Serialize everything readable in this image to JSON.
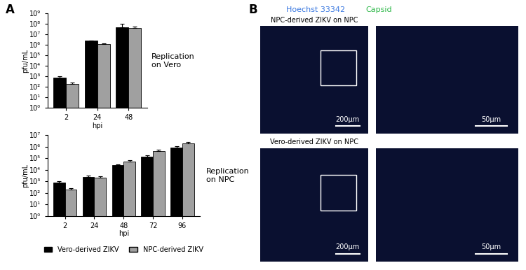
{
  "chart_data": [
    {
      "type": "bar",
      "log": "y",
      "grid": false,
      "x_label": "hpi",
      "y_label": "pfu/mL",
      "annotation": "Replication on Vero",
      "categories": [
        "2",
        "24",
        "48"
      ],
      "ylim": [
        1,
        1000000000
      ],
      "yticks": [
        {
          "value": 1,
          "label": "10⁰"
        },
        {
          "value": 10,
          "label": "10¹"
        },
        {
          "value": 100,
          "label": "10²"
        },
        {
          "value": 1000,
          "label": "10³"
        },
        {
          "value": 10000,
          "label": "10⁴"
        },
        {
          "value": 100000,
          "label": "10⁵"
        },
        {
          "value": 1000000,
          "label": "10⁶"
        },
        {
          "value": 10000000,
          "label": "10⁷"
        },
        {
          "value": 100000000,
          "label": "10⁸"
        },
        {
          "value": 1000000000,
          "label": "10⁹"
        }
      ],
      "series": [
        {
          "name": "Vero-derived ZIKV",
          "color": "#000000",
          "values": [
            800,
            2500000,
            50000000
          ],
          "error": [
            300,
            300000,
            50000000
          ]
        },
        {
          "name": "NPC-derived ZIKV",
          "color": "#a0a0a0",
          "values": [
            200,
            1300000,
            40000000
          ],
          "error": [
            60,
            200000,
            20000000
          ]
        }
      ]
    },
    {
      "type": "bar",
      "log": "y",
      "grid": false,
      "legend": "upper center",
      "x_label": "hpi",
      "y_label": "pfu/mL",
      "annotation": "Replication on NPC",
      "categories": [
        "2",
        "24",
        "48",
        "72",
        "96"
      ],
      "ylim": [
        1,
        10000000
      ],
      "yticks": [
        {
          "value": 1,
          "label": "10⁰"
        },
        {
          "value": 10,
          "label": "10¹"
        },
        {
          "value": 100,
          "label": "10²"
        },
        {
          "value": 1000,
          "label": "10³"
        },
        {
          "value": 10000,
          "label": "10⁴"
        },
        {
          "value": 100000,
          "label": "10⁵"
        },
        {
          "value": 1000000,
          "label": "10⁶"
        },
        {
          "value": 10000000,
          "label": "10⁷"
        }
      ],
      "series": [
        {
          "name": "Vero-derived ZIKV",
          "color": "#000000",
          "values": [
            800,
            2500,
            25000,
            130000,
            800000
          ],
          "error": [
            200,
            500,
            5000,
            50000,
            300000
          ]
        },
        {
          "name": "NPC-derived ZIKV",
          "color": "#a0a0a0",
          "values": [
            200,
            2200,
            50000,
            400000,
            2000000
          ],
          "error": [
            50,
            500,
            20000,
            150000,
            600000
          ]
        }
      ]
    }
  ],
  "panel_labels": [
    "A",
    "B"
  ],
  "image_panel": {
    "stain_labels": [
      {
        "text": "Hoechst 33342",
        "color": "#3a78e0"
      },
      {
        "text": "Capsid",
        "color": "#2fb84a"
      }
    ],
    "rows": [
      {
        "title": "NPC-derived ZIKV on NPC",
        "scale_bars": [
          "200μm",
          "50μm"
        ]
      },
      {
        "title": "Vero-derived ZIKV on NPC",
        "scale_bars": [
          "200μm",
          "50μm"
        ]
      }
    ]
  }
}
